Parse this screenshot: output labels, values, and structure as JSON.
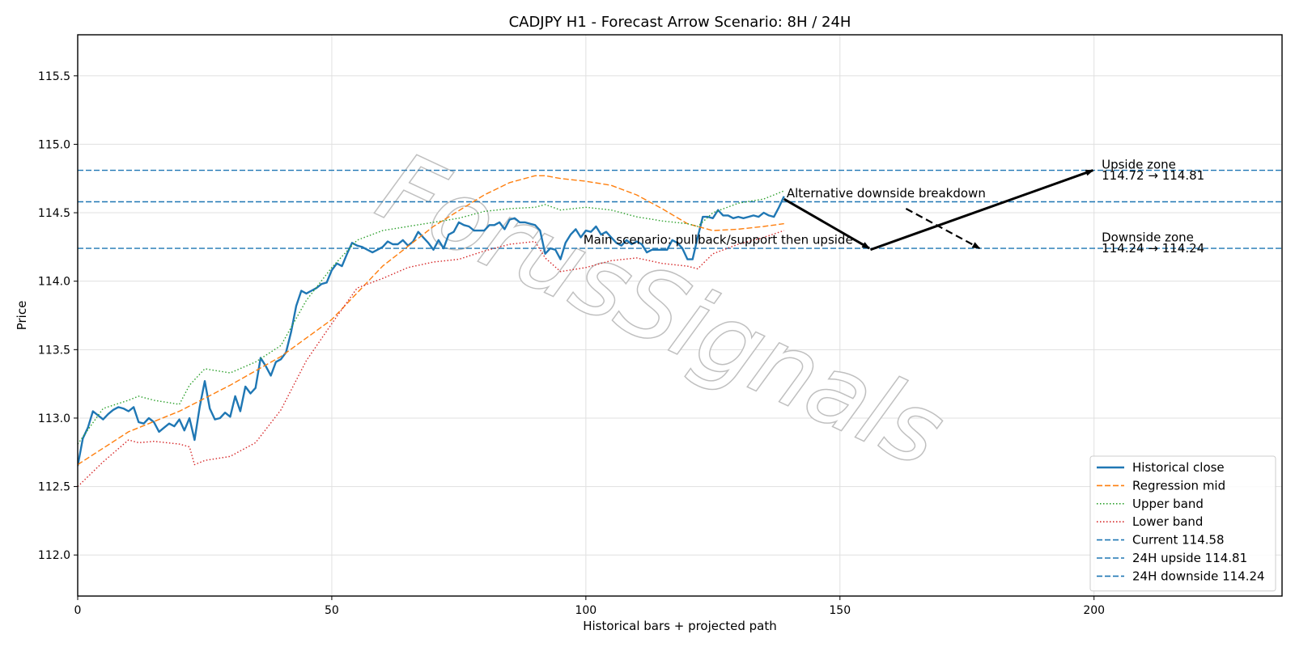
{
  "chart_data": {
    "type": "line",
    "title": "CADJPY H1 - Forecast Arrow Scenario: 8H / 24H",
    "xlabel": "Historical bars + projected path",
    "ylabel": "Price",
    "xlim": [
      0,
      237
    ],
    "ylim": [
      111.7,
      115.8
    ],
    "xticks": [
      0,
      50,
      100,
      150,
      200
    ],
    "yticks": [
      112.0,
      112.5,
      113.0,
      113.5,
      114.0,
      114.5,
      115.0,
      115.5
    ],
    "grid": true,
    "legend_position": "lower-right",
    "watermark": "ForusSignals",
    "series": [
      {
        "name": "Historical close",
        "style": "solid",
        "color": "#1f77b4",
        "x": [
          0,
          1,
          2,
          3,
          4,
          5,
          6,
          7,
          8,
          9,
          10,
          11,
          12,
          13,
          14,
          15,
          16,
          17,
          18,
          19,
          20,
          21,
          22,
          23,
          24,
          25,
          26,
          27,
          28,
          29,
          30,
          31,
          32,
          33,
          34,
          35,
          36,
          37,
          38,
          39,
          40,
          41,
          42,
          43,
          44,
          45,
          46,
          47,
          48,
          49,
          50,
          51,
          52,
          53,
          54,
          55,
          56,
          57,
          58,
          59,
          60,
          61,
          62,
          63,
          64,
          65,
          66,
          67,
          68,
          69,
          70,
          71,
          72,
          73,
          74,
          75,
          76,
          77,
          78,
          79,
          80,
          81,
          82,
          83,
          84,
          85,
          86,
          87,
          88,
          89,
          90,
          91,
          92,
          93,
          94,
          95,
          96,
          97,
          98,
          99,
          100,
          101,
          102,
          103,
          104,
          105,
          106,
          107,
          108,
          109,
          110,
          111,
          112,
          113,
          114,
          115,
          116,
          117,
          118,
          119,
          120,
          121,
          122,
          123,
          124,
          125,
          126,
          127,
          128,
          129,
          130,
          131,
          132,
          133,
          134,
          135,
          136,
          137,
          138,
          139
        ],
        "values": [
          112.65,
          112.85,
          112.93,
          113.05,
          113.02,
          112.99,
          113.03,
          113.06,
          113.08,
          113.07,
          113.05,
          113.08,
          112.97,
          112.96,
          113.0,
          112.97,
          112.9,
          112.93,
          112.96,
          112.94,
          112.99,
          112.91,
          113.0,
          112.84,
          113.08,
          113.27,
          113.07,
          112.99,
          113.0,
          113.04,
          113.01,
          113.16,
          113.05,
          113.23,
          113.18,
          113.22,
          113.44,
          113.38,
          113.31,
          113.41,
          113.43,
          113.48,
          113.63,
          113.82,
          113.93,
          113.91,
          113.93,
          113.95,
          113.98,
          113.99,
          114.08,
          114.13,
          114.11,
          114.2,
          114.28,
          114.26,
          114.25,
          114.23,
          114.21,
          114.23,
          114.25,
          114.29,
          114.27,
          114.27,
          114.3,
          114.26,
          114.29,
          114.36,
          114.32,
          114.28,
          114.23,
          114.3,
          114.24,
          114.34,
          114.36,
          114.43,
          114.41,
          114.4,
          114.37,
          114.37,
          114.37,
          114.41,
          114.41,
          114.43,
          114.38,
          114.45,
          114.46,
          114.43,
          114.43,
          114.42,
          114.41,
          114.37,
          114.2,
          114.24,
          114.23,
          114.16,
          114.28,
          114.34,
          114.38,
          114.32,
          114.37,
          114.36,
          114.4,
          114.34,
          114.36,
          114.32,
          114.28,
          114.26,
          114.3,
          114.27,
          114.29,
          114.27,
          114.21,
          114.23,
          114.23,
          114.23,
          114.23,
          114.3,
          114.28,
          114.24,
          114.16,
          114.16,
          114.32,
          114.47,
          114.47,
          114.46,
          114.52,
          114.48,
          114.48,
          114.46,
          114.47,
          114.46,
          114.47,
          114.48,
          114.47,
          114.5,
          114.48,
          114.47,
          114.54,
          114.62
        ]
      },
      {
        "name": "Regression mid",
        "style": "dashed",
        "color": "#ff7f0e",
        "x": [
          0,
          10,
          20,
          30,
          40,
          50,
          60,
          70,
          80,
          85,
          90,
          92,
          95,
          100,
          105,
          110,
          115,
          120,
          125,
          130,
          135,
          139
        ],
        "values": [
          112.66,
          112.9,
          113.05,
          113.24,
          113.45,
          113.72,
          114.11,
          114.4,
          114.63,
          114.72,
          114.77,
          114.77,
          114.75,
          114.73,
          114.7,
          114.63,
          114.53,
          114.42,
          114.37,
          114.38,
          114.4,
          114.42
        ]
      },
      {
        "name": "Upper band",
        "style": "dotted",
        "color": "#2ca02c",
        "x": [
          0,
          5,
          10,
          12,
          15,
          20,
          22,
          25,
          30,
          35,
          40,
          45,
          50,
          55,
          60,
          65,
          70,
          75,
          80,
          85,
          90,
          92,
          95,
          100,
          105,
          110,
          115,
          120,
          122,
          125,
          130,
          135,
          139
        ],
        "values": [
          112.81,
          113.07,
          113.13,
          113.16,
          113.13,
          113.1,
          113.24,
          113.36,
          113.33,
          113.41,
          113.53,
          113.86,
          114.1,
          114.3,
          114.37,
          114.4,
          114.43,
          114.46,
          114.51,
          114.53,
          114.54,
          114.56,
          114.52,
          114.54,
          114.52,
          114.47,
          114.44,
          114.42,
          114.4,
          114.5,
          114.57,
          114.6,
          114.66
        ]
      },
      {
        "name": "Lower band",
        "style": "dotted",
        "color": "#d62728",
        "x": [
          0,
          5,
          10,
          12,
          15,
          20,
          22,
          23,
          25,
          30,
          35,
          40,
          45,
          50,
          55,
          60,
          65,
          70,
          75,
          80,
          85,
          90,
          92,
          95,
          100,
          105,
          110,
          115,
          120,
          122,
          125,
          130,
          135,
          139
        ],
        "values": [
          112.5,
          112.68,
          112.84,
          112.82,
          112.83,
          112.81,
          112.79,
          112.66,
          112.69,
          112.72,
          112.82,
          113.06,
          113.42,
          113.69,
          113.95,
          114.02,
          114.1,
          114.14,
          114.16,
          114.22,
          114.27,
          114.29,
          114.17,
          114.07,
          114.1,
          114.15,
          114.17,
          114.13,
          114.11,
          114.09,
          114.2,
          114.27,
          114.32,
          114.37
        ]
      },
      {
        "name": "Current 114.58",
        "style": "dashed",
        "color": "#1f77b4",
        "hline": 114.58
      },
      {
        "name": "24H upside 114.81",
        "style": "dashed",
        "color": "#1f77b4",
        "hline": 114.81
      },
      {
        "name": "24H downside 114.24",
        "style": "dashed",
        "color": "#1f77b4",
        "hline": 114.24
      }
    ],
    "arrows": [
      {
        "name": "main-arrow-1",
        "from": [
          139,
          114.6
        ],
        "to": [
          155.8,
          114.24
        ],
        "style": "solid"
      },
      {
        "name": "main-arrow-2",
        "from": [
          156,
          114.23
        ],
        "to": [
          199.8,
          114.81
        ],
        "style": "solid"
      },
      {
        "name": "alt-arrow",
        "from": [
          163,
          114.53
        ],
        "to": [
          177.5,
          114.24
        ],
        "style": "dashed"
      }
    ],
    "annotations": [
      {
        "name": "upside-zone-title",
        "text": "Upside zone",
        "x": 201.5,
        "y": 114.81
      },
      {
        "name": "upside-zone-range",
        "text": "114.72 → 114.81",
        "x": 201.5,
        "y": 114.73
      },
      {
        "name": "downside-zone-title",
        "text": "Downside zone",
        "x": 201.5,
        "y": 114.28
      },
      {
        "name": "downside-zone-range",
        "text": "114.24 → 114.24",
        "x": 201.5,
        "y": 114.2
      },
      {
        "name": "alternative-scenario-label",
        "text": "Alternative downside breakdown",
        "x": 139.5,
        "y": 114.6
      },
      {
        "name": "main-scenario-label",
        "text": "Main scenario: pullback/support then upside",
        "x": 99.5,
        "y": 114.26
      }
    ]
  }
}
